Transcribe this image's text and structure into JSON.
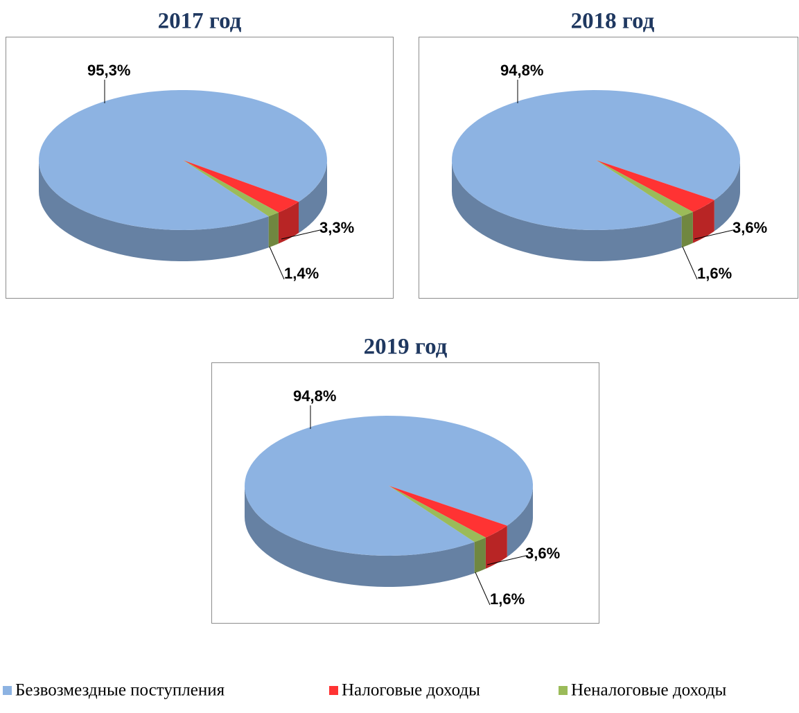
{
  "chart_data": [
    {
      "type": "pie",
      "title": "2017 год",
      "categories": [
        "Безвозмездные поступления",
        "Налоговые доходы",
        "Неналоговые доходы"
      ],
      "values": [
        95.3,
        3.3,
        1.4
      ],
      "value_labels": [
        "95,3%",
        "3,3%",
        "1,4%"
      ],
      "colors": [
        "#8db3e2",
        "#ff3333",
        "#9bbb59"
      ]
    },
    {
      "type": "pie",
      "title": "2018 год",
      "categories": [
        "Безвозмездные поступления",
        "Налоговые доходы",
        "Неналоговые доходы"
      ],
      "values": [
        94.8,
        3.6,
        1.6
      ],
      "value_labels": [
        "94,8%",
        "3,6%",
        "1,6%"
      ],
      "colors": [
        "#8db3e2",
        "#ff3333",
        "#9bbb59"
      ]
    },
    {
      "type": "pie",
      "title": "2019 год",
      "categories": [
        "Безвозмездные поступления",
        "Налоговые доходы",
        "Неналоговые доходы"
      ],
      "values": [
        94.8,
        3.6,
        1.6
      ],
      "value_labels": [
        "94,8%",
        "3,6%",
        "1,6%"
      ],
      "colors": [
        "#8db3e2",
        "#ff3333",
        "#9bbb59"
      ]
    }
  ]
}
